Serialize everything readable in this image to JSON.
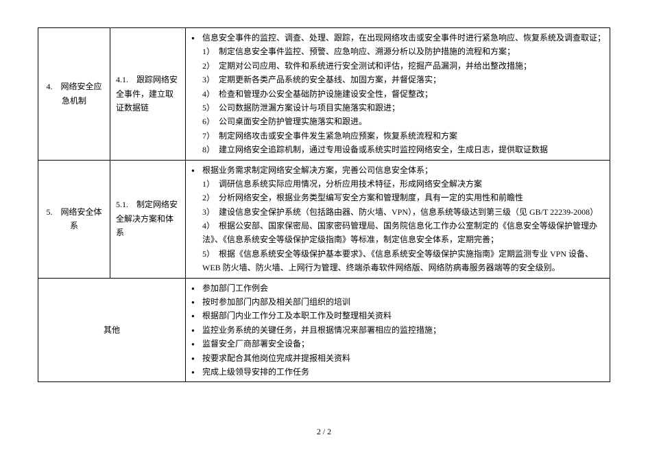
{
  "rows": [
    {
      "col1": "4.　网络安全应急机制",
      "col2": "4.1.　跟踪网络安全事件，建立取证数据链",
      "col3_bullets": [
        "信息安全事件的监控、调查、处理、跟踪，在出现网络攻击或安全事件时进行紧急响应、恢复系统及调查取证；"
      ],
      "col3_numbered": [
        "1）　制定信息安全事件监控、预警、应急响应、溯源分析以及防护措施的流程和方案；",
        "2）　定期对公司应用、软件和系统进行安全测试和评估，挖掘产品漏洞，并给出整改措施；",
        "3）　定期更新各类产品系统的安全基线、加固方案，并督促落实；",
        "4）　检查和管理办公安全基础防护设施建设安全性，督促整改；",
        "5）　公司数据防泄漏方案设计与项目实施落实和跟进；",
        "6）　公司桌面安全防护管理实施落实和跟进。",
        "7）　制定网络攻击或安全事件发生紧急响应预案，恢复系统流程和方案",
        "8）　建立网络安全追踪机制，通过专用设备或系统实时监控网络安全，生成日志，提供取证数据"
      ]
    },
    {
      "col1": "5.　网络安全体系",
      "col2": "5.1.　制定网络安全解决方案和体系",
      "col3_bullets": [
        "根据业务需求制定网络安全解决方案，完善公司信息安全体系；"
      ],
      "col3_numbered": [
        "1）　调研信息系统实际应用情况，分析应用技术特征，形成网络安全解决方案",
        "2）　分析网络安全，根据业务类型编写安全方案和管理制度，具有一定的实用性和前瞻性",
        "3）　建设信息安全保护系统（包括路由器、防火墙、VPN），信息系统等级达到第三级（见 GB/T 22239-2008）",
        "4）　根据公安部、国家保密局、国家密码管理局、国务院信息化工作办公室制定的《信息安全等级保护管理办法》、《信息系统安全等级保护定级指南》等标准，制定信息安全体系，定期完善；",
        "5）　根据《信息系统安全等级保护基本要求》、《信息系统安全等级保护实施指南》定期监测专业 VPN 设备、WEB 防火墙、防火墙、上网行为管理、终端杀毒软件网络版、网络防病毒服务器端等的安全级别。"
      ]
    },
    {
      "col12": "其他",
      "col3_bullets": [
        "参加部门工作例会",
        "按时参加部门内部及相关部门组织的培训",
        "根据部门内业工作分工及本职工作及时整理相关资料",
        "监控业务系统的关键任务，并且根据情况来部署相应的监控措施；",
        "监督安全厂商部署安全设备；",
        "按要求配合其他岗位完成并提报相关资料",
        "完成上级领导安排的工作任务"
      ]
    }
  ],
  "pageNumber": "2 / 2"
}
